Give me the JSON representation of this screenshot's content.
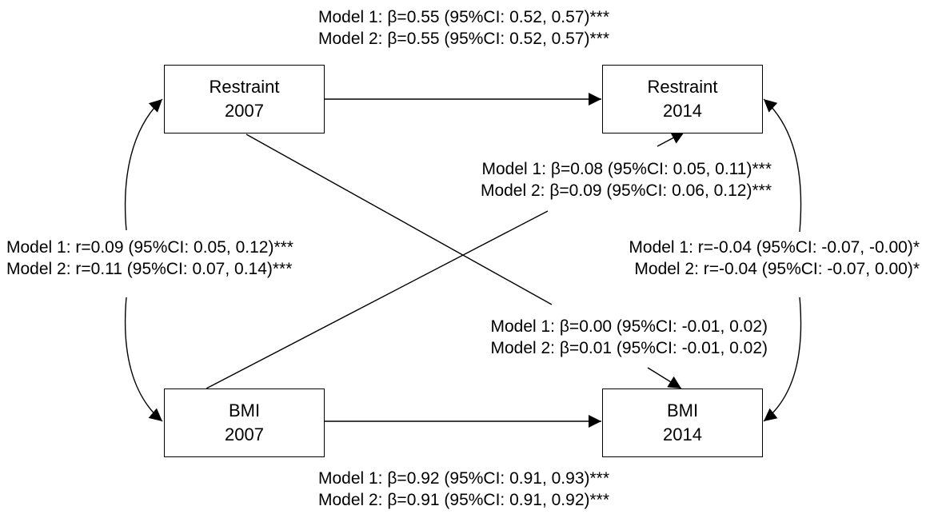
{
  "nodes": {
    "restraint_2007": {
      "line1": "Restraint",
      "line2": "2007"
    },
    "restraint_2014": {
      "line1": "Restraint",
      "line2": "2014"
    },
    "bmi_2007": {
      "line1": "BMI",
      "line2": "2007"
    },
    "bmi_2014": {
      "line1": "BMI",
      "line2": "2014"
    }
  },
  "labels": {
    "restraint_stability": {
      "model1": "Model 1: β=0.55 (95%CI: 0.52, 0.57)***",
      "model2": "Model 2: β=0.55 (95%CI: 0.52, 0.57)***"
    },
    "bmi_to_restraint": {
      "model1": "Model 1: β=0.08 (95%CI: 0.05, 0.11)***",
      "model2": "Model 2: β=0.09 (95%CI: 0.06, 0.12)***"
    },
    "baseline_correlation": {
      "model1": "Model 1: r=0.09 (95%CI: 0.05, 0.12)***",
      "model2": "Model 2: r=0.11 (95%CI: 0.07, 0.14)***"
    },
    "followup_correlation": {
      "model1": "Model 1: r=-0.04 (95%CI: -0.07, -0.00)*",
      "model2": "Model 2: r=-0.04 (95%CI: -0.07, 0.00)*"
    },
    "restraint_to_bmi": {
      "model1": "Model 1: β=0.00 (95%CI: -0.01, 0.02)",
      "model2": "Model 2: β=0.01 (95%CI: -0.01, 0.02)"
    },
    "bmi_stability": {
      "model1": "Model 1: β=0.92 (95%CI: 0.91, 0.93)***",
      "model2": "Model 2: β=0.91 (95%CI: 0.91, 0.92)***"
    }
  }
}
